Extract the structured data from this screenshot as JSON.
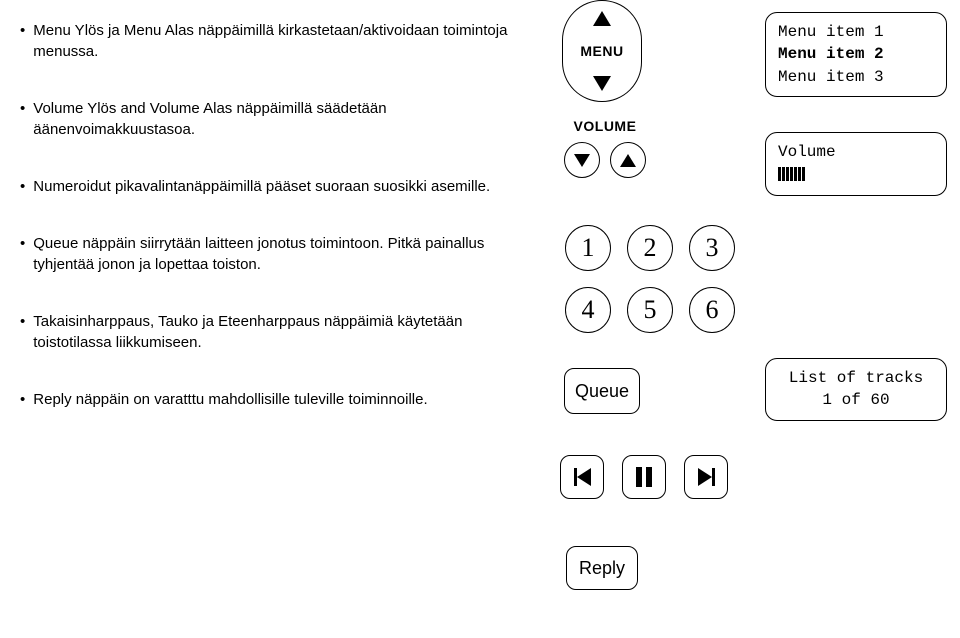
{
  "bullets": [
    "Menu Ylös ja Menu Alas näppäimillä kirkastetaan/aktivoidaan toimintoja menussa.",
    "Volume Ylös and Volume Alas näppäimillä säädetään äänenvoimakkuustasoa.",
    "Numeroidut pikavalintanäppäimillä pääset suoraan suosikki asemille.",
    "Queue näppäin siirrytään laitteen jonotus toimintoon. Pitkä painallus tyhjentää jonon ja lopettaa toiston.",
    "Takaisinharppaus, Tauko ja Eteenharppaus näppäimiä käytetään toistotilassa liikkumiseen.",
    "Reply näppäin on varatttu mahdollisille tuleville toiminnoille."
  ],
  "menu_btn": {
    "label": "MENU"
  },
  "volume_btn": {
    "label": "VOLUME"
  },
  "keypad": [
    "1",
    "2",
    "3",
    "4",
    "5",
    "6"
  ],
  "queue_label": "Queue",
  "reply_label": "Reply",
  "panel_menu": {
    "line1": "Menu item 1",
    "line2": "Menu item 2",
    "line3": "Menu item 3"
  },
  "panel_volume": {
    "label": "Volume",
    "ticks": 7
  },
  "panel_list": {
    "line1": "List of tracks",
    "line2": "1 of 60"
  },
  "colors": {
    "fg": "#000000",
    "bg": "#ffffff"
  }
}
